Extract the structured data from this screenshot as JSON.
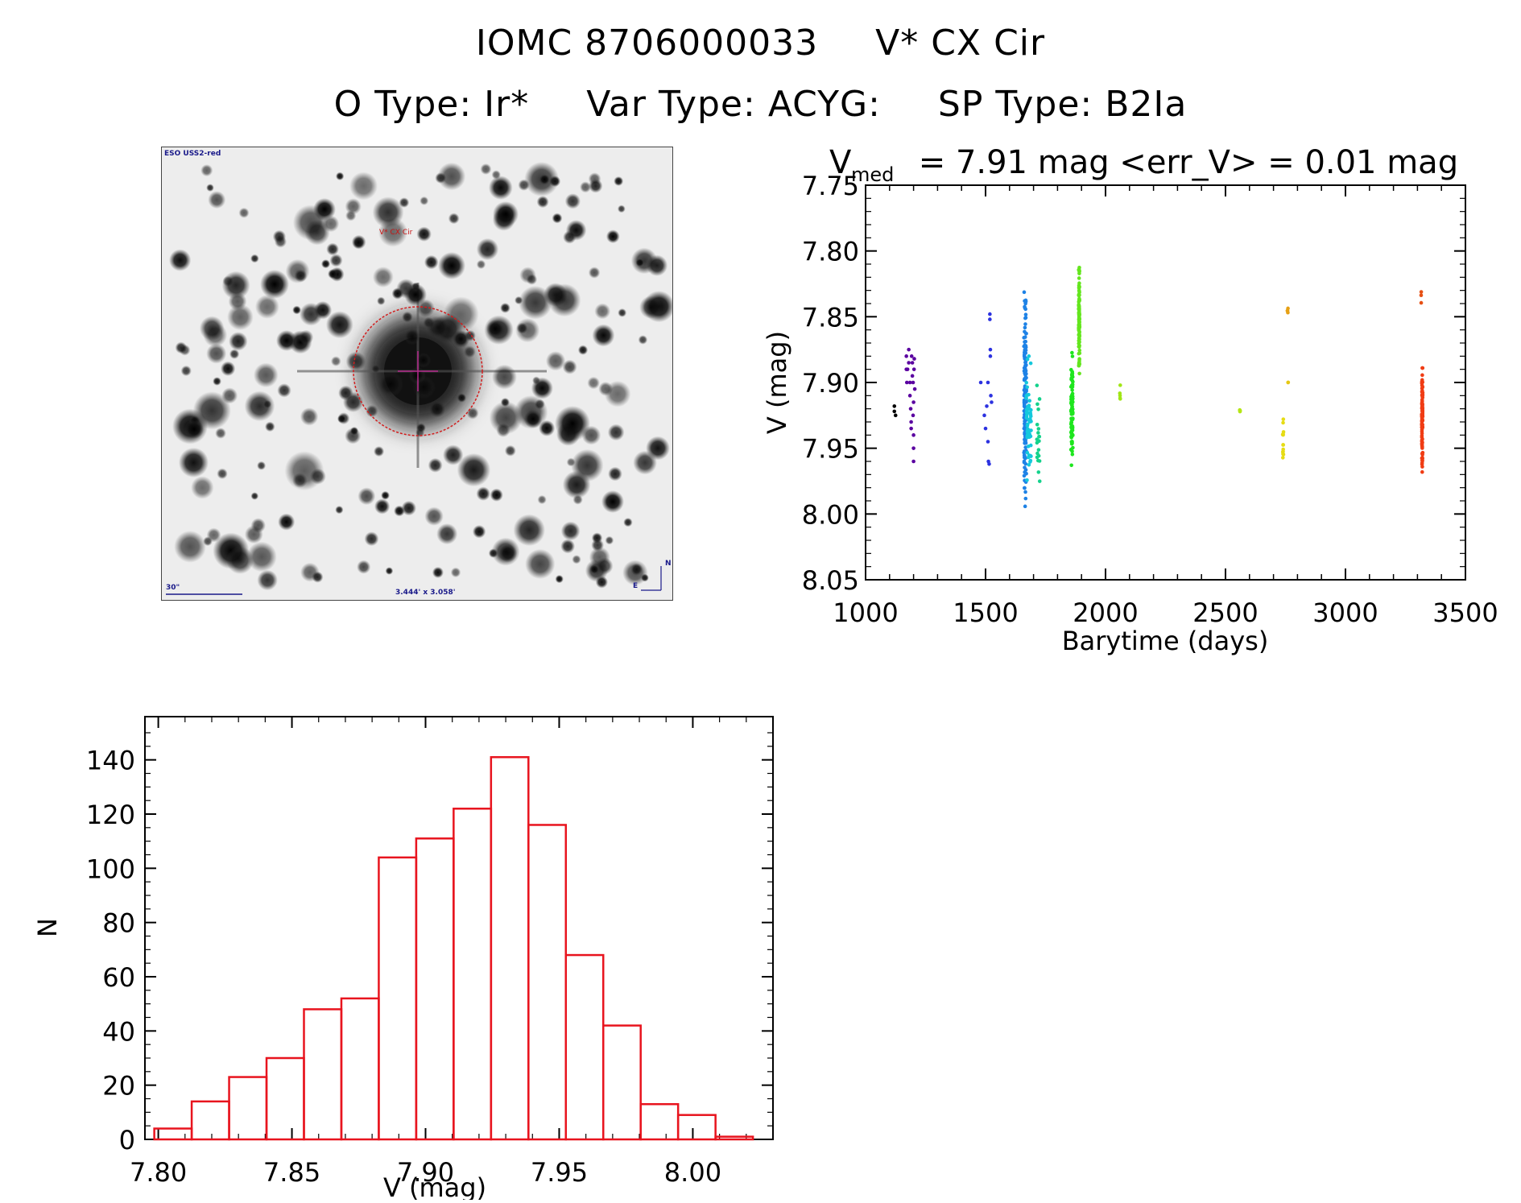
{
  "header": {
    "object_id": "IOMC 8706000033",
    "object_name": "V* CX Cir",
    "o_type": "O Type: Ir*",
    "var_type": "Var Type: ACYG:",
    "sp_type": "SP Type: B2Ia"
  },
  "finder_chart": {
    "survey_label": "ESO USS2-red",
    "target_label": "V* CX Cir",
    "scale_label": "30\"",
    "size_label": "3.444' x 3.058'",
    "north_label": "N",
    "east_label": "E"
  },
  "chart_data": [
    {
      "type": "scatter",
      "title_main": "V",
      "title_sub": "med",
      "title_rest": " = 7.91 mag <err_V> = 0.01 mag",
      "xlabel": "Barytime (days)",
      "ylabel": "V (mag)",
      "xlim": [
        1000,
        3500
      ],
      "ylim": [
        8.05,
        7.75
      ],
      "y_inverted": true,
      "xticks": [
        1000,
        1500,
        2000,
        2500,
        3000,
        3500
      ],
      "yticks": [
        "7.75",
        "7.80",
        "7.85",
        "7.90",
        "7.95",
        "8.00",
        "8.05"
      ],
      "grid": false,
      "series": [
        {
          "color": "#000000",
          "x": [
            1120,
            1120,
            1125
          ],
          "y": [
            7.918,
            7.922,
            7.925
          ]
        },
        {
          "color": "#5a00a0",
          "x": [
            1170,
            1170,
            1172,
            1175,
            1180,
            1180,
            1185,
            1185,
            1188,
            1190,
            1190,
            1192,
            1195,
            1195,
            1198,
            1198,
            1200,
            1200,
            1200,
            1200,
            1202,
            1203,
            1205
          ],
          "y": [
            7.88,
            7.89,
            7.9,
            7.89,
            7.875,
            7.885,
            7.9,
            7.91,
            7.92,
            7.93,
            7.935,
            7.88,
            7.885,
            7.895,
            7.9,
            7.925,
            7.94,
            7.95,
            7.96,
            7.915,
            7.89,
            7.882,
            7.905
          ]
        },
        {
          "color": "#2c32e0",
          "x": [
            1480,
            1495,
            1500,
            1505,
            1510,
            1510,
            1512,
            1515,
            1518,
            1518,
            1520,
            1520,
            1522,
            1525
          ],
          "y": [
            7.9,
            7.925,
            7.935,
            7.918,
            7.9,
            7.945,
            7.96,
            7.962,
            7.848,
            7.852,
            7.875,
            7.88,
            7.91,
            7.915
          ]
        }
      ]
    },
    {
      "type": "bar",
      "xlabel": "V (mag)",
      "ylabel": "N",
      "xlim": [
        7.795,
        8.03
      ],
      "ylim": [
        0,
        150
      ],
      "xticks": [
        "7.80",
        "7.85",
        "7.90",
        "7.95",
        "8.00"
      ],
      "yticks": [
        "0",
        "20",
        "40",
        "60",
        "80",
        "100",
        "120",
        "140"
      ],
      "bin_edges": [
        7.7985,
        7.8125,
        7.8265,
        7.8405,
        7.8545,
        7.8685,
        7.8825,
        7.8965,
        7.9105,
        7.9245,
        7.9385,
        7.9525,
        7.9665,
        7.9805,
        7.9945,
        8.0085,
        8.0225
      ],
      "values": [
        4,
        14,
        23,
        30,
        48,
        52,
        104,
        111,
        122,
        141,
        116,
        68,
        42,
        13,
        9,
        1
      ],
      "color": "#e8141e"
    }
  ],
  "lc_clusters": [
    {
      "color": "#1e82e6",
      "x_center": 1665,
      "x_spread": 10,
      "y_min": 7.805,
      "y_max": 8.015,
      "count": 150
    },
    {
      "color": "#14c8dc",
      "x_center": 1680,
      "x_spread": 20,
      "y_min": 7.87,
      "y_max": 7.995,
      "count": 60
    },
    {
      "color": "#14d28c",
      "x_center": 1720,
      "x_spread": 12,
      "y_min": 7.885,
      "y_max": 7.995,
      "count": 20
    },
    {
      "color": "#1ee61e",
      "x_center": 1860,
      "x_spread": 8,
      "y_min": 7.87,
      "y_max": 7.975,
      "count": 90
    },
    {
      "color": "#64e61e",
      "x_center": 1890,
      "x_spread": 4,
      "y_min": 7.8,
      "y_max": 7.905,
      "count": 100
    },
    {
      "color": "#a0e614",
      "x_center": 2060,
      "x_spread": 3,
      "y_min": 7.895,
      "y_max": 7.92,
      "count": 5
    },
    {
      "color": "#b4e614",
      "x_center": 2560,
      "x_spread": 2,
      "y_min": 7.918,
      "y_max": 7.925,
      "count": 4
    },
    {
      "color": "#e6dc14",
      "x_center": 2740,
      "x_spread": 4,
      "y_min": 7.92,
      "y_max": 7.975,
      "count": 14
    },
    {
      "color": "#e6a014",
      "x_center": 2760,
      "x_spread": 4,
      "y_min": 7.84,
      "y_max": 7.855,
      "count": 4
    },
    {
      "color": "#e6c814",
      "x_center": 2760,
      "x_spread": 3,
      "y_min": 7.898,
      "y_max": 7.902,
      "count": 2
    },
    {
      "color": "#f03c14",
      "x_center": 3320,
      "x_spread": 4,
      "y_min": 7.875,
      "y_max": 7.975,
      "count": 100
    },
    {
      "color": "#e65014",
      "x_center": 3315,
      "x_spread": 2,
      "y_min": 7.822,
      "y_max": 7.852,
      "count": 3
    }
  ]
}
